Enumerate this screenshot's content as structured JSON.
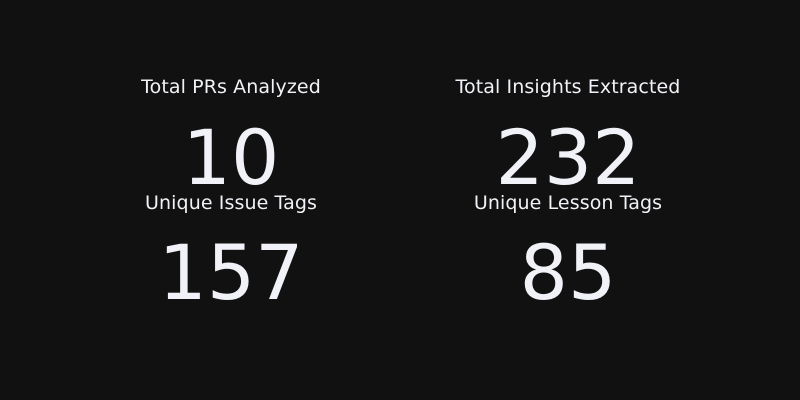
{
  "metrics": [
    {
      "label": "Total PRs Analyzed",
      "value": "10"
    },
    {
      "label": "Total Insights Extracted",
      "value": "232"
    },
    {
      "label": "Unique Issue Tags",
      "value": "157"
    },
    {
      "label": "Unique Lesson Tags",
      "value": "85"
    }
  ],
  "colors": {
    "background": "#111111",
    "text": "#f0f2f7"
  }
}
